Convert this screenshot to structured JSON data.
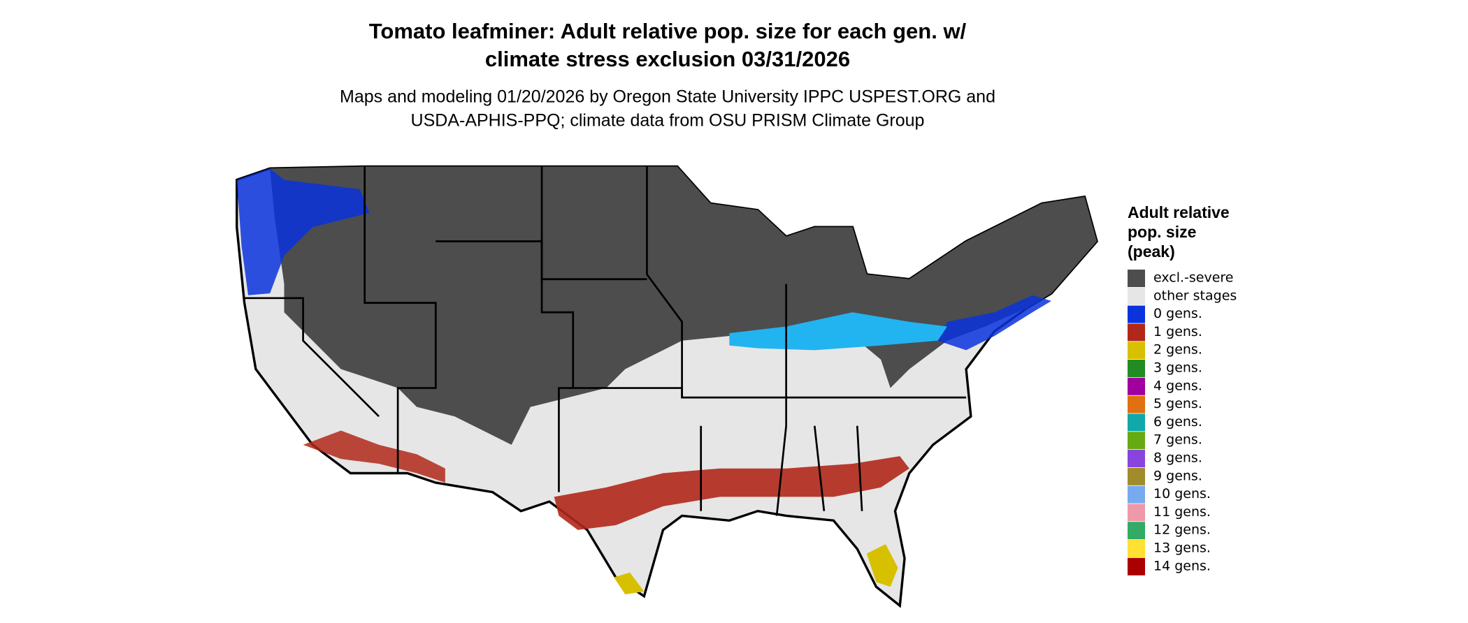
{
  "map": {
    "title": [
      "Tomato leafminer: Adult relative pop. size for each gen. w/",
      "climate stress exclusion 03/31/2026"
    ],
    "subtitle": [
      "Maps and modeling 01/20/2026 by Oregon State University IPPC USPEST.ORG and",
      "USDA-APHIS-PPQ; climate data from OSU PRISM Climate Group"
    ],
    "legend": {
      "title": [
        "Adult relative",
        "pop. size",
        "(peak)"
      ],
      "items": [
        {
          "label": "excl.-severe",
          "color": "#4d4d4d"
        },
        {
          "label": "other stages",
          "color": "#e6e6e6"
        },
        {
          "label": "0 gens.",
          "color": "#0a33dd"
        },
        {
          "label": "1 gens.",
          "color": "#b0281a"
        },
        {
          "label": "2 gens.",
          "color": "#d6c000"
        },
        {
          "label": "3 gens.",
          "color": "#228b22"
        },
        {
          "label": "4 gens.",
          "color": "#a000a0"
        },
        {
          "label": "5 gens.",
          "color": "#e07010"
        },
        {
          "label": "6 gens.",
          "color": "#10a8a8"
        },
        {
          "label": "7 gens.",
          "color": "#66aa11"
        },
        {
          "label": "8 gens.",
          "color": "#8844dd"
        },
        {
          "label": "9 gens.",
          "color": "#a08c2a"
        },
        {
          "label": "10 gens.",
          "color": "#77aaee"
        },
        {
          "label": "11 gens.",
          "color": "#ee99aa"
        },
        {
          "label": "12 gens.",
          "color": "#33aa66"
        },
        {
          "label": "13 gens.",
          "color": "#ffe033"
        },
        {
          "label": "14 gens.",
          "color": "#aa0000"
        }
      ]
    }
  }
}
